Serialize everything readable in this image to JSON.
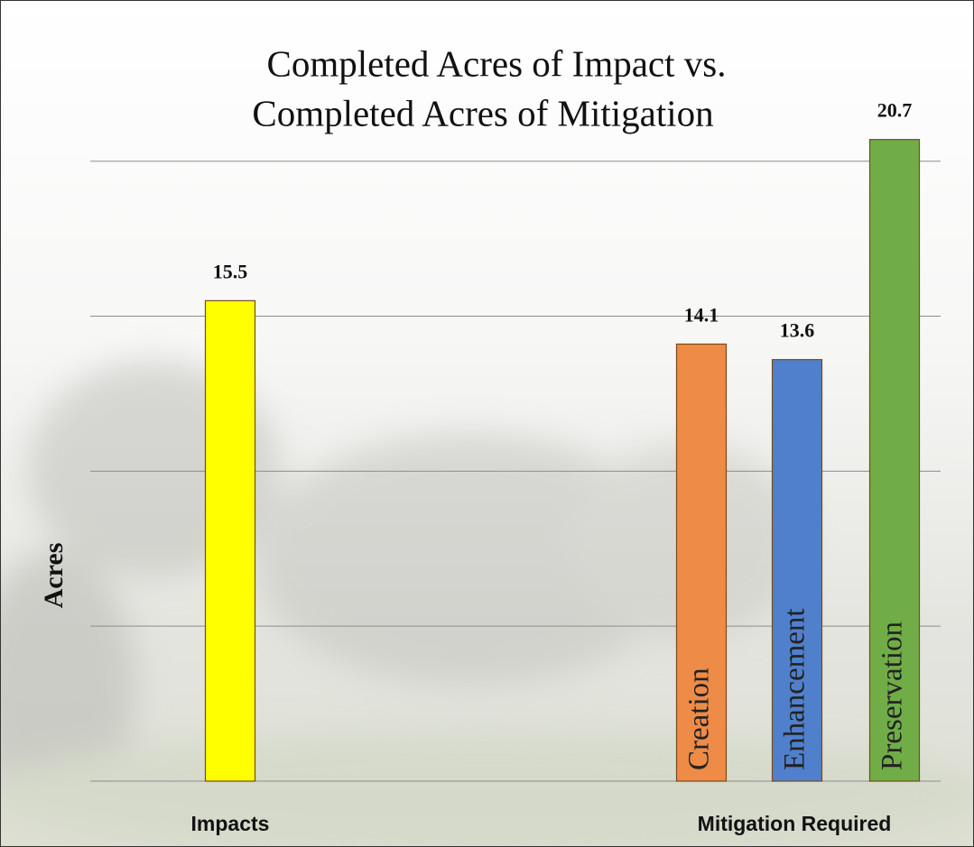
{
  "chart_data": {
    "type": "bar",
    "title": [
      "Completed Acres of Impact vs.",
      "Completed Acres of Mitigation"
    ],
    "y_label": "Acres",
    "groups": [
      {
        "label": "Impacts",
        "bars": [
          {
            "value": 15.5,
            "color": "#ffff00"
          }
        ]
      },
      {
        "label": "Mitigation Required",
        "bars": [
          {
            "name": "Creation",
            "value": 14.1,
            "color": "#ed8b47"
          },
          {
            "name": "Enhancement",
            "value": 13.6,
            "color": "#5080cc"
          },
          {
            "name": "Preservation",
            "value": 20.7,
            "color": "#70ad47"
          }
        ]
      }
    ],
    "ylim": [
      0,
      22
    ],
    "yticks": [
      0,
      5,
      10,
      15,
      20
    ],
    "grid": true
  }
}
